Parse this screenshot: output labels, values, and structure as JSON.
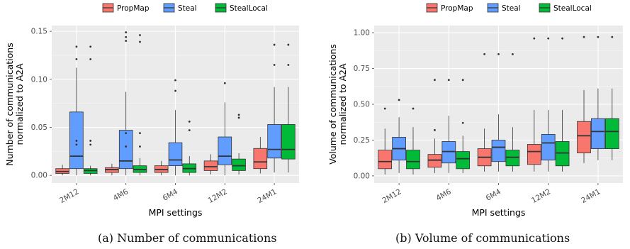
{
  "legend": {
    "items": [
      {
        "label": "PropMap",
        "color": "#F8766D"
      },
      {
        "label": "Steal",
        "color": "#619CFF"
      },
      {
        "label": "StealLocal",
        "color": "#00BA38"
      }
    ]
  },
  "captions": {
    "a": "(a) Number of communications",
    "b": "(b) Volume of communications"
  },
  "chart_data": [
    {
      "type": "box",
      "title": "",
      "xlabel": "MPI settings",
      "ylabel": [
        "Number of communications",
        "normalized to A2A"
      ],
      "categories": [
        "2M12",
        "4M6",
        "6M4",
        "12M2",
        "24M1"
      ],
      "ylim": [
        -0.008,
        0.156
      ],
      "yticks": [
        0.0,
        0.05,
        0.1,
        0.15
      ],
      "ytick_labels": [
        "0.00",
        "0.05",
        "0.10",
        "0.15"
      ],
      "grid": true,
      "legend_position": "top",
      "series": [
        {
          "name": "PropMap",
          "color": "#F8766D",
          "boxes": [
            {
              "min": 0.0,
              "q1": 0.002,
              "median": 0.004,
              "q3": 0.007,
              "max": 0.011,
              "outliers": []
            },
            {
              "min": 0.0,
              "q1": 0.003,
              "median": 0.006,
              "q3": 0.008,
              "max": 0.012,
              "outliers": []
            },
            {
              "min": 0.0,
              "q1": 0.003,
              "median": 0.006,
              "q3": 0.01,
              "max": 0.015,
              "outliers": []
            },
            {
              "min": 0.001,
              "q1": 0.005,
              "median": 0.009,
              "q3": 0.015,
              "max": 0.022,
              "outliers": []
            },
            {
              "min": 0.002,
              "q1": 0.007,
              "median": 0.014,
              "q3": 0.028,
              "max": 0.04,
              "outliers": []
            }
          ]
        },
        {
          "name": "Steal",
          "color": "#619CFF",
          "boxes": [
            {
              "min": 0.0,
              "q1": 0.007,
              "median": 0.02,
              "q3": 0.066,
              "max": 0.112,
              "outliers": [
                0.121,
                0.134,
                0.036,
                0.032
              ]
            },
            {
              "min": 0.0,
              "q1": 0.007,
              "median": 0.015,
              "q3": 0.047,
              "max": 0.087,
              "outliers": [
                0.149,
                0.144,
                0.14,
                0.044,
                0.03
              ]
            },
            {
              "min": 0.0,
              "q1": 0.01,
              "median": 0.016,
              "q3": 0.034,
              "max": 0.068,
              "outliers": [
                0.099,
                0.088
              ]
            },
            {
              "min": 0.0,
              "q1": 0.011,
              "median": 0.02,
              "q3": 0.04,
              "max": 0.076,
              "outliers": [
                0.096
              ]
            },
            {
              "min": 0.003,
              "q1": 0.018,
              "median": 0.027,
              "q3": 0.053,
              "max": 0.092,
              "outliers": [
                0.136,
                0.115
              ]
            }
          ]
        },
        {
          "name": "StealLocal",
          "color": "#00BA38",
          "boxes": [
            {
              "min": 0.0,
              "q1": 0.002,
              "median": 0.005,
              "q3": 0.007,
              "max": 0.01,
              "outliers": [
                0.134,
                0.121,
                0.036,
                0.032
              ]
            },
            {
              "min": 0.0,
              "q1": 0.003,
              "median": 0.006,
              "q3": 0.01,
              "max": 0.018,
              "outliers": [
                0.146,
                0.139,
                0.044,
                0.03
              ]
            },
            {
              "min": 0.0,
              "q1": 0.003,
              "median": 0.007,
              "q3": 0.012,
              "max": 0.02,
              "outliers": [
                0.056,
                0.047
              ]
            },
            {
              "min": 0.001,
              "q1": 0.005,
              "median": 0.01,
              "q3": 0.017,
              "max": 0.023,
              "outliers": [
                0.063,
                0.06
              ]
            },
            {
              "min": 0.003,
              "q1": 0.017,
              "median": 0.027,
              "q3": 0.053,
              "max": 0.092,
              "outliers": [
                0.136,
                0.115
              ]
            }
          ]
        }
      ]
    },
    {
      "type": "box",
      "title": "",
      "xlabel": "MPI settings",
      "ylabel": [
        "Volume of communications",
        "normalized to A2A"
      ],
      "categories": [
        "2M12",
        "4M6",
        "6M4",
        "12M2",
        "24M1"
      ],
      "ylim": [
        -0.05,
        1.05
      ],
      "yticks": [
        0.0,
        0.25,
        0.5,
        0.75,
        1.0
      ],
      "ytick_labels": [
        "0.00",
        "0.25",
        "0.50",
        "0.75",
        "1.00"
      ],
      "grid": true,
      "legend_position": "top",
      "series": [
        {
          "name": "PropMap",
          "color": "#F8766D",
          "boxes": [
            {
              "min": 0.01,
              "q1": 0.05,
              "median": 0.1,
              "q3": 0.18,
              "max": 0.33,
              "outliers": [
                0.47
              ]
            },
            {
              "min": 0.02,
              "q1": 0.06,
              "median": 0.11,
              "q3": 0.15,
              "max": 0.26,
              "outliers": [
                0.32,
                0.67
              ]
            },
            {
              "min": 0.03,
              "q1": 0.07,
              "median": 0.13,
              "q3": 0.19,
              "max": 0.33,
              "outliers": [
                0.85
              ]
            },
            {
              "min": 0.03,
              "q1": 0.08,
              "median": 0.17,
              "q3": 0.22,
              "max": 0.46,
              "outliers": [
                0.96
              ]
            },
            {
              "min": 0.09,
              "q1": 0.16,
              "median": 0.28,
              "q3": 0.38,
              "max": 0.6,
              "outliers": [
                0.97
              ]
            }
          ]
        },
        {
          "name": "Steal",
          "color": "#619CFF",
          "boxes": [
            {
              "min": 0.02,
              "q1": 0.11,
              "median": 0.19,
              "q3": 0.27,
              "max": 0.41,
              "outliers": [
                0.53
              ]
            },
            {
              "min": 0.02,
              "q1": 0.09,
              "median": 0.17,
              "q3": 0.24,
              "max": 0.42,
              "outliers": [
                0.67
              ]
            },
            {
              "min": 0.03,
              "q1": 0.1,
              "median": 0.2,
              "q3": 0.25,
              "max": 0.43,
              "outliers": [
                0.85
              ]
            },
            {
              "min": 0.03,
              "q1": 0.11,
              "median": 0.23,
              "q3": 0.29,
              "max": 0.46,
              "outliers": [
                0.96
              ]
            },
            {
              "min": 0.11,
              "q1": 0.19,
              "median": 0.31,
              "q3": 0.4,
              "max": 0.61,
              "outliers": [
                0.97
              ]
            }
          ]
        },
        {
          "name": "StealLocal",
          "color": "#00BA38",
          "boxes": [
            {
              "min": 0.01,
              "q1": 0.05,
              "median": 0.1,
              "q3": 0.18,
              "max": 0.34,
              "outliers": [
                0.47
              ]
            },
            {
              "min": 0.02,
              "q1": 0.05,
              "median": 0.12,
              "q3": 0.17,
              "max": 0.28,
              "outliers": [
                0.37,
                0.67
              ]
            },
            {
              "min": 0.03,
              "q1": 0.07,
              "median": 0.13,
              "q3": 0.18,
              "max": 0.34,
              "outliers": [
                0.85
              ]
            },
            {
              "min": 0.03,
              "q1": 0.07,
              "median": 0.16,
              "q3": 0.24,
              "max": 0.46,
              "outliers": [
                0.96
              ]
            },
            {
              "min": 0.11,
              "q1": 0.19,
              "median": 0.31,
              "q3": 0.4,
              "max": 0.61,
              "outliers": [
                0.97
              ]
            }
          ]
        }
      ]
    }
  ]
}
